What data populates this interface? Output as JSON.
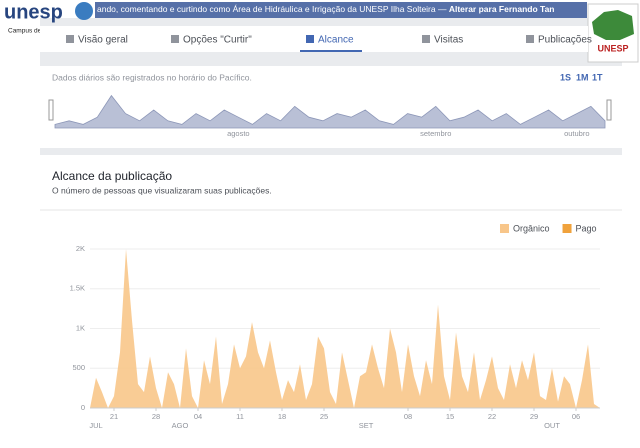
{
  "header": {
    "logo": "unesp",
    "campus": "Campus de Ilha Solteira",
    "notice": "ando, comentando e curtindo como Área de Hidráulica e Irrigação da UNESP Ilha Solteira — ",
    "switch_link": "Alterar para Fernando Tan",
    "corner_logo": "UNESP"
  },
  "tabs": [
    "Visão geral",
    "Opções \"Curtir\"",
    "Alcance",
    "Visitas",
    "Publicações"
  ],
  "timeline": {
    "note": "Dados diários são registrados no horário do Pacífico.",
    "ranges": [
      "1S",
      "1M",
      "1T"
    ]
  },
  "chart_data": [
    {
      "type": "area",
      "color": "#b9c0d6",
      "x": [
        0,
        1,
        2,
        3,
        4,
        5,
        6,
        7,
        8,
        9,
        10,
        11,
        12,
        13,
        14,
        15,
        16,
        17,
        18,
        19,
        20,
        21,
        22,
        23,
        24,
        25,
        26,
        27,
        28,
        29,
        30,
        31,
        32,
        33,
        34,
        35,
        36,
        37,
        38,
        39
      ],
      "values": [
        1,
        2,
        1,
        3,
        9,
        4,
        2,
        5,
        2,
        1,
        4,
        2,
        5,
        3,
        1,
        4,
        2,
        6,
        3,
        2,
        4,
        3,
        5,
        2,
        1,
        4,
        3,
        6,
        2,
        3,
        5,
        2,
        4,
        1,
        3,
        5,
        2,
        4,
        6,
        2
      ],
      "xlim": [
        0,
        39
      ],
      "ylim": [
        0,
        10
      ],
      "xticks": [
        {
          "value": 13,
          "label": "agosto"
        },
        {
          "value": 27,
          "label": "setembro"
        },
        {
          "value": 37,
          "label": "outubro"
        }
      ]
    },
    {
      "type": "stacked-area",
      "title": "Alcance da publicação",
      "subtitle": "O número de pessoas que visualizaram suas publicações.",
      "x": [
        0,
        1,
        2,
        3,
        4,
        5,
        6,
        7,
        8,
        9,
        10,
        11,
        12,
        13,
        14,
        15,
        16,
        17,
        18,
        19,
        20,
        21,
        22,
        23,
        24,
        25,
        26,
        27,
        28,
        29,
        30,
        31,
        32,
        33,
        34,
        35,
        36,
        37,
        38,
        39,
        40,
        41,
        42,
        43,
        44,
        45,
        46,
        47,
        48,
        49,
        50,
        51,
        52,
        53,
        54,
        55,
        56,
        57,
        58,
        59,
        60,
        61,
        62,
        63,
        64,
        65,
        66,
        67,
        68,
        69,
        70,
        71,
        72,
        73,
        74,
        75,
        76,
        77,
        78,
        79,
        80,
        81,
        82,
        83,
        84,
        85
      ],
      "series": [
        {
          "name": "Orgânico",
          "color": "#f8c68a",
          "values": [
            0,
            380,
            200,
            0,
            150,
            700,
            2000,
            1100,
            300,
            200,
            650,
            250,
            0,
            450,
            300,
            0,
            750,
            150,
            0,
            600,
            300,
            900,
            50,
            300,
            800,
            500,
            650,
            1080,
            700,
            500,
            850,
            450,
            100,
            350,
            200,
            550,
            100,
            300,
            900,
            750,
            200,
            50,
            700,
            350,
            0,
            400,
            450,
            800,
            500,
            250,
            1000,
            700,
            200,
            800,
            400,
            150,
            600,
            300,
            1300,
            400,
            100,
            950,
            400,
            200,
            700,
            100,
            350,
            650,
            250,
            100,
            550,
            250,
            600,
            350,
            700,
            150,
            100,
            500,
            80,
            400,
            300,
            0,
            350,
            800,
            50,
            0
          ]
        },
        {
          "name": "Pago",
          "color": "#f0a23c",
          "values": [
            0,
            0,
            0,
            0,
            0,
            0,
            0,
            0,
            0,
            0,
            0,
            0,
            0,
            0,
            0,
            0,
            0,
            0,
            0,
            0,
            0,
            0,
            0,
            0,
            0,
            0,
            0,
            0,
            0,
            0,
            0,
            0,
            0,
            0,
            0,
            0,
            0,
            0,
            0,
            0,
            0,
            0,
            0,
            0,
            0,
            0,
            0,
            0,
            0,
            0,
            0,
            0,
            0,
            0,
            0,
            0,
            0,
            0,
            0,
            0,
            0,
            0,
            0,
            0,
            0,
            0,
            0,
            0,
            0,
            0,
            0,
            0,
            0,
            0,
            0,
            0,
            0,
            0,
            0,
            0,
            0,
            0,
            0,
            0,
            0,
            0
          ]
        }
      ],
      "xlim": [
        0,
        85
      ],
      "ylim": [
        0,
        2000
      ],
      "yticks": [
        0,
        500,
        {
          "value": 1000,
          "label": "1K"
        },
        {
          "value": 1500,
          "label": "1.5K"
        },
        {
          "value": 2000,
          "label": "2K"
        }
      ],
      "xticks": [
        {
          "value": 4,
          "label": "21"
        },
        {
          "value": 11,
          "label": "28"
        },
        {
          "value": 18,
          "label": "04"
        },
        {
          "value": 25,
          "label": "11"
        },
        {
          "value": 32,
          "label": "18"
        },
        {
          "value": 39,
          "label": "25"
        },
        {
          "value": 53,
          "label": "08"
        },
        {
          "value": 60,
          "label": "15"
        },
        {
          "value": 67,
          "label": "22"
        },
        {
          "value": 74,
          "label": "29"
        },
        {
          "value": 81,
          "label": "06"
        }
      ],
      "month_labels": [
        {
          "value": 1,
          "label": "JUL"
        },
        {
          "value": 15,
          "label": "AGO"
        },
        {
          "value": 46,
          "label": "SET"
        },
        {
          "value": 77,
          "label": "OUT"
        }
      ],
      "grid": true,
      "legend": "top-right"
    }
  ]
}
